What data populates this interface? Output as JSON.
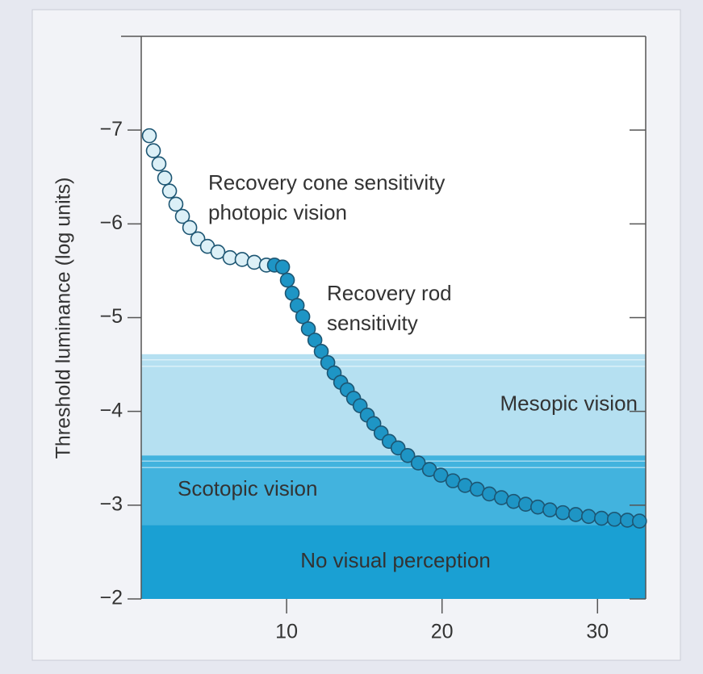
{
  "chart_data": {
    "type": "scatter",
    "ylabel": "Threshold luminance (log units)",
    "xlim": [
      0.65,
      33.1
    ],
    "ylim": [
      -2,
      -8
    ],
    "xticks": [
      10,
      20,
      30
    ],
    "yticks": [
      {
        "value": -7,
        "label": "−7"
      },
      {
        "value": -6,
        "label": "−6"
      },
      {
        "value": -5,
        "label": "−5"
      },
      {
        "value": -4,
        "label": "−4"
      },
      {
        "value": -3,
        "label": "−3"
      },
      {
        "value": -2,
        "label": "−2"
      }
    ],
    "bands": [
      {
        "label": "Mesopic vision",
        "from": -4.61,
        "to": -3.53,
        "color": "#b5e0f1"
      },
      {
        "label": "Scotopic vision",
        "from": -3.53,
        "to": -2.79,
        "color": "#42b3de"
      },
      {
        "label": "No visual perception",
        "from": -2.79,
        "to": -2,
        "color": "#1aa0d3"
      }
    ],
    "annotations": [
      [
        "Recovery cone sensitivity",
        "photopic vision"
      ],
      [
        "Recovery rod",
        "sensitivity"
      ]
    ],
    "series": [
      {
        "color": "#dcf0f7",
        "x": [
          1.17,
          1.43,
          1.79,
          2.16,
          2.47,
          2.88,
          3.3,
          3.77,
          4.29,
          4.91,
          5.58,
          6.36,
          7.14,
          7.92,
          8.7
        ],
        "values": [
          -6.94,
          -6.78,
          -6.64,
          -6.49,
          -6.35,
          -6.21,
          -6.08,
          -5.96,
          -5.84,
          -5.76,
          -5.7,
          -5.64,
          -5.62,
          -5.59,
          -5.56
        ]
      },
      {
        "color": "#1e95c5",
        "x": [
          9.22,
          9.74,
          10.05,
          10.36,
          10.68,
          11.04,
          11.4,
          11.82,
          12.23,
          12.65,
          13.06,
          13.48,
          13.9,
          14.31,
          14.73,
          15.19,
          15.61,
          16.08,
          16.6,
          17.17,
          17.79,
          18.47,
          19.19,
          19.92,
          20.7,
          21.48,
          22.26,
          23.04,
          23.82,
          24.6,
          25.38,
          26.16,
          26.94,
          27.77,
          28.6,
          29.43,
          30.26,
          31.09,
          31.92,
          32.7
        ],
        "values": [
          -5.56,
          -5.54,
          -5.4,
          -5.26,
          -5.13,
          -5.01,
          -4.88,
          -4.76,
          -4.64,
          -4.52,
          -4.41,
          -4.31,
          -4.23,
          -4.14,
          -4.06,
          -3.96,
          -3.87,
          -3.77,
          -3.68,
          -3.61,
          -3.53,
          -3.45,
          -3.38,
          -3.32,
          -3.26,
          -3.21,
          -3.17,
          -3.12,
          -3.08,
          -3.04,
          -3.01,
          -2.98,
          -2.95,
          -2.92,
          -2.9,
          -2.88,
          -2.86,
          -2.85,
          -2.84,
          -2.83
        ]
      }
    ]
  }
}
